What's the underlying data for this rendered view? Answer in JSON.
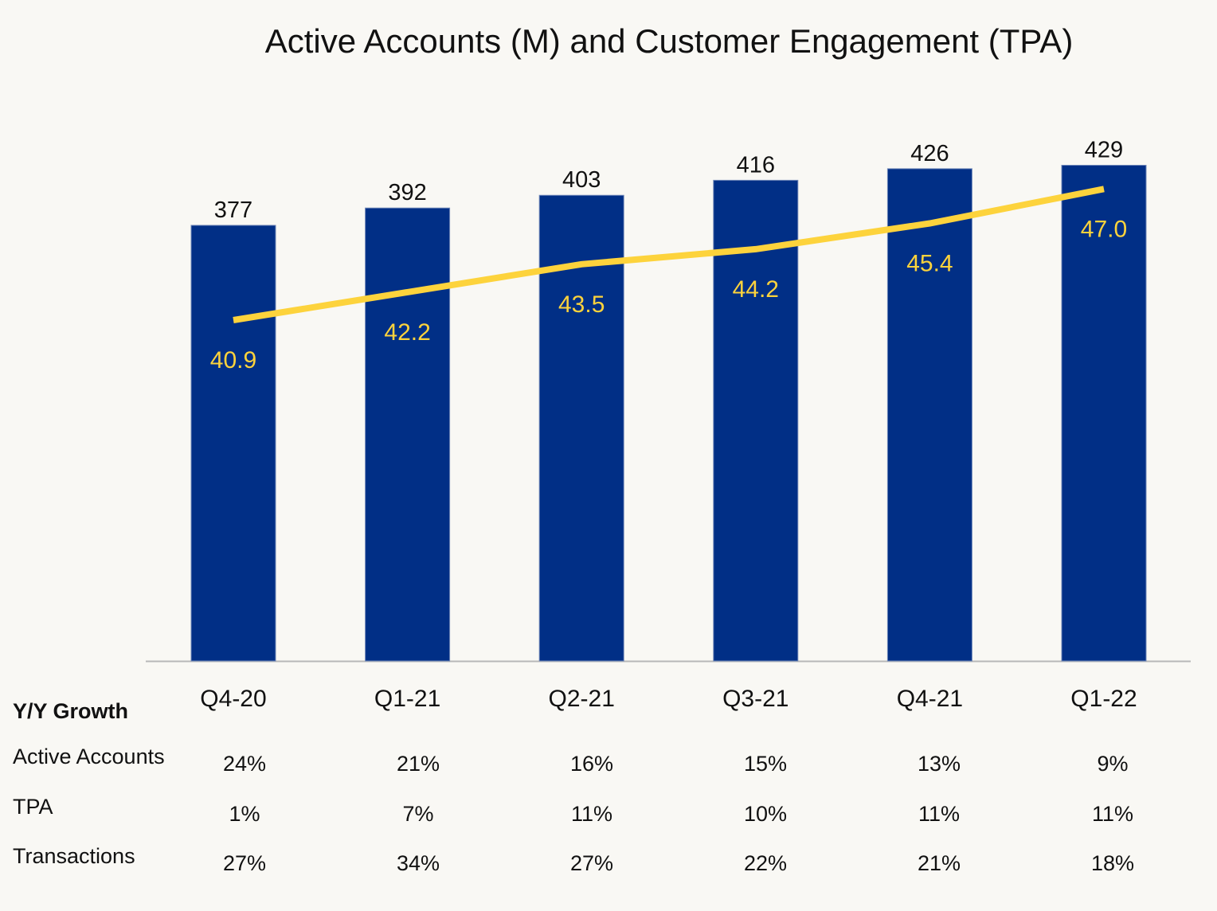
{
  "chart_data": {
    "type": "bar+line",
    "title": "Active Accounts (M) and Customer Engagement (TPA)",
    "categories": [
      "Q4-20",
      "Q1-21",
      "Q2-21",
      "Q3-21",
      "Q4-21",
      "Q1-22"
    ],
    "series": [
      {
        "type": "bar",
        "values": [
          377,
          392,
          403,
          416,
          426,
          429
        ],
        "color": "#012f86"
      },
      {
        "type": "line",
        "values": [
          40.9,
          42.2,
          43.5,
          44.2,
          45.4,
          47.0
        ],
        "labels": [
          "40.9",
          "42.2",
          "43.5",
          "44.2",
          "45.4",
          "47.0"
        ],
        "color": "#fdd33c"
      }
    ],
    "bar_labels": [
      "377",
      "392",
      "403",
      "416",
      "426",
      "429"
    ],
    "grid": false
  },
  "table": {
    "header": "Y/Y Growth",
    "rows": [
      {
        "label": "Active Accounts",
        "values": [
          "24%",
          "21%",
          "16%",
          "15%",
          "13%",
          "9%"
        ]
      },
      {
        "label": "TPA",
        "values": [
          "1%",
          "7%",
          "11%",
          "10%",
          "11%",
          "11%"
        ]
      },
      {
        "label": "Transactions",
        "values": [
          "27%",
          "34%",
          "27%",
          "22%",
          "21%",
          "18%"
        ]
      }
    ]
  }
}
